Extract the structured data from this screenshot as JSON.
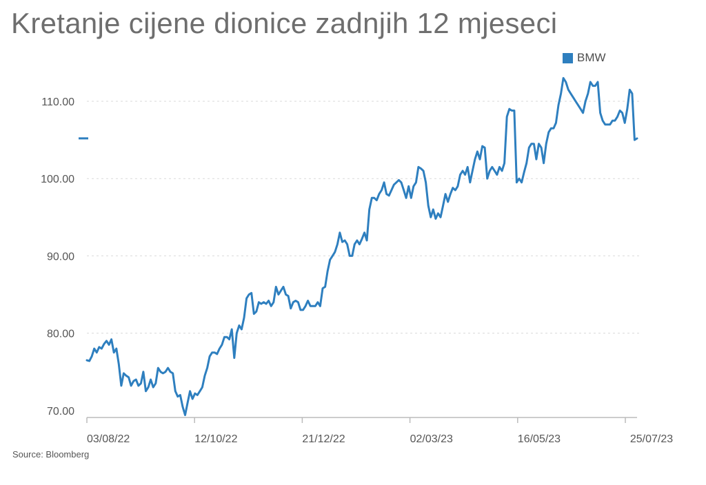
{
  "title": "Kretanje cijene dionice zadnjih 12 mjeseci",
  "source": "Source: Bloomberg",
  "colors": {
    "line": "#2e7fbf",
    "grid": "#d9d9d9",
    "axis": "#bbbbbb"
  },
  "chart_data": {
    "type": "line",
    "title": "Kretanje cijene dionice zadnjih 12 mjeseci",
    "xlabel": "",
    "ylabel": "",
    "ylim": [
      70,
      114
    ],
    "yticks": [
      "110.00",
      "100.00",
      "90.00",
      "80.00",
      "70.00"
    ],
    "ytick_values": [
      110,
      100,
      90,
      80,
      70
    ],
    "xticks": [
      "03/08/22",
      "12/10/22",
      "21/12/22",
      "02/03/23",
      "16/05/23",
      "25/07/23"
    ],
    "grid": true,
    "legend": "top-right",
    "series": [
      {
        "name": "BMW",
        "values": [
          76.5,
          76.4,
          77.0,
          78.0,
          77.5,
          78.2,
          78.0,
          78.6,
          79.0,
          78.5,
          79.2,
          77.5,
          78.0,
          76.0,
          73.2,
          74.8,
          74.5,
          74.3,
          73.2,
          73.8,
          74.0,
          73.2,
          73.5,
          75.0,
          72.5,
          73.0,
          74.0,
          73.0,
          73.5,
          75.5,
          75.0,
          74.8,
          75.0,
          75.5,
          75.0,
          74.8,
          72.5,
          71.8,
          72.0,
          70.5,
          69.4,
          71.0,
          72.5,
          71.5,
          72.2,
          72.0,
          72.5,
          73.0,
          74.5,
          75.5,
          77.0,
          77.5,
          77.5,
          77.3,
          78.0,
          78.5,
          79.5,
          79.5,
          79.2,
          80.5,
          76.8,
          80.0,
          81.0,
          80.5,
          82.0,
          84.5,
          85.0,
          85.2,
          82.5,
          82.8,
          84.0,
          83.8,
          84.0,
          83.8,
          84.2,
          83.5,
          84.0,
          86.0,
          85.0,
          85.5,
          86.0,
          85.0,
          84.8,
          83.2,
          84.0,
          84.2,
          84.0,
          83.0,
          83.0,
          83.5,
          84.2,
          83.5,
          83.5,
          83.5,
          84.0,
          83.5,
          85.8,
          86.0,
          88.0,
          89.5,
          90.0,
          90.5,
          91.5,
          93.0,
          91.8,
          92.0,
          91.5,
          90.0,
          90.0,
          91.5,
          92.0,
          91.5,
          92.2,
          93.0,
          92.0,
          96.0,
          97.5,
          97.5,
          97.2,
          98.0,
          98.5,
          99.5,
          98.0,
          97.8,
          98.5,
          99.2,
          99.5,
          99.8,
          99.5,
          98.5,
          97.5,
          99.0,
          97.5,
          99.0,
          99.5,
          101.5,
          101.3,
          101.0,
          99.5,
          96.5,
          95.0,
          96.0,
          94.8,
          95.5,
          95.0,
          96.5,
          98.0,
          97.0,
          98.0,
          98.8,
          98.5,
          99.0,
          100.5,
          101.0,
          100.5,
          101.5,
          99.5,
          101.0,
          102.5,
          103.5,
          102.5,
          104.2,
          104.0,
          100.0,
          101.0,
          101.5,
          101.0,
          100.5,
          101.5,
          101.0,
          102.0,
          108.0,
          109.0,
          108.8,
          108.8,
          99.5,
          100.0,
          99.5,
          100.8,
          102.0,
          104.0,
          104.5,
          104.5,
          102.5,
          104.5,
          104.0,
          102.0,
          104.5,
          106.0,
          106.5,
          106.5,
          107.2,
          109.5,
          111.0,
          113.0,
          112.5,
          111.5,
          111.0,
          110.5,
          110.0,
          109.5,
          109.0,
          108.5,
          110.0,
          111.0,
          112.5,
          112.0,
          112.0,
          112.5,
          108.5,
          107.5,
          107.0,
          107.0,
          107.0,
          107.5,
          107.5,
          108.0,
          108.8,
          108.5,
          107.2,
          109.0,
          111.5,
          111.0,
          105.0,
          105.2
        ]
      }
    ]
  }
}
